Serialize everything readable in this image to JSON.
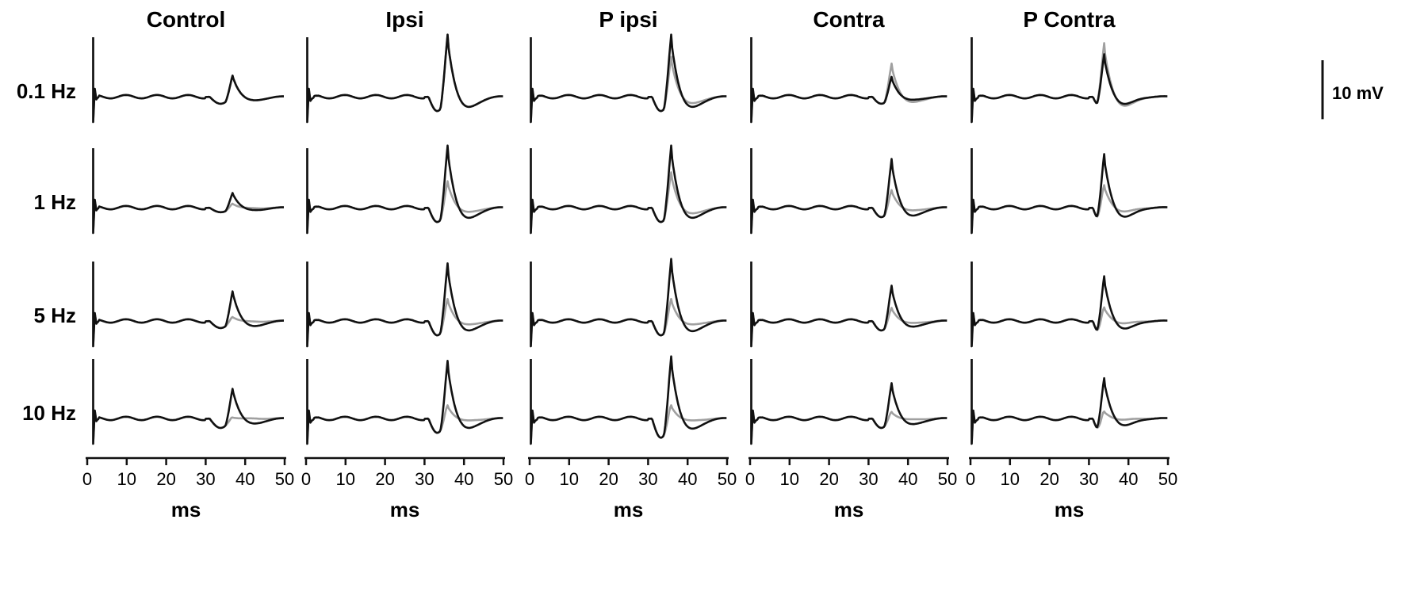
{
  "chart_data": {
    "type": "line",
    "columns": [
      "Control",
      "Ipsi",
      "P ipsi",
      "Contra",
      "P Contra"
    ],
    "rows": [
      "0.1 Hz",
      "1 Hz",
      "5 Hz",
      "10 Hz"
    ],
    "x_ticks": [
      "0",
      "10",
      "20",
      "30",
      "40",
      "50"
    ],
    "xlabel": "ms",
    "xlim": [
      0,
      50
    ],
    "scale_bar": {
      "label": "10 mV",
      "value_mV": 10
    },
    "series_colors": {
      "black": "#111111",
      "gray": "#a0a0a0"
    },
    "traces": {
      "Control": {
        "0.1 Hz": {
          "black_peak_mV": 5,
          "gray_peak_mV": 5,
          "peak_ms": 37,
          "dip_mV": -1.5
        },
        "1 Hz": {
          "black_peak_mV": 3.5,
          "gray_peak_mV": 1,
          "peak_ms": 37,
          "dip_mV": -1
        },
        "5 Hz": {
          "black_peak_mV": 7,
          "gray_peak_mV": 1,
          "peak_ms": 37,
          "dip_mV": -1.5
        },
        "10 Hz": {
          "black_peak_mV": 7,
          "gray_peak_mV": 0.3,
          "peak_ms": 37,
          "dip_mV": -2
        }
      },
      "Ipsi": {
        "0.1 Hz": {
          "black_peak_mV": 14,
          "gray_peak_mV": 14,
          "peak_ms": 36,
          "dip_mV": -3
        },
        "1 Hz": {
          "black_peak_mV": 14,
          "gray_peak_mV": 6,
          "peak_ms": 36,
          "dip_mV": -3
        },
        "5 Hz": {
          "black_peak_mV": 13,
          "gray_peak_mV": 5,
          "peak_ms": 36,
          "dip_mV": -3
        },
        "10 Hz": {
          "black_peak_mV": 13,
          "gray_peak_mV": 3,
          "peak_ms": 36,
          "dip_mV": -3
        }
      },
      "P ipsi": {
        "0.1 Hz": {
          "black_peak_mV": 14,
          "gray_peak_mV": 9,
          "peak_ms": 36,
          "dip_mV": -3
        },
        "1 Hz": {
          "black_peak_mV": 14,
          "gray_peak_mV": 8,
          "peak_ms": 36,
          "dip_mV": -3
        },
        "5 Hz": {
          "black_peak_mV": 14,
          "gray_peak_mV": 5,
          "peak_ms": 36,
          "dip_mV": -3
        },
        "10 Hz": {
          "black_peak_mV": 14,
          "gray_peak_mV": 3,
          "peak_ms": 36,
          "dip_mV": -4
        }
      },
      "Contra": {
        "0.1 Hz": {
          "black_peak_mV": 4.5,
          "gray_peak_mV": 7.5,
          "peak_ms": 36,
          "dip_mV": -1.5
        },
        "1 Hz": {
          "black_peak_mV": 11,
          "gray_peak_mV": 4,
          "peak_ms": 36,
          "dip_mV": -2
        },
        "5 Hz": {
          "black_peak_mV": 8,
          "gray_peak_mV": 3,
          "peak_ms": 36,
          "dip_mV": -2
        },
        "10 Hz": {
          "black_peak_mV": 8,
          "gray_peak_mV": 1.5,
          "peak_ms": 36,
          "dip_mV": -2
        }
      },
      "P Contra": {
        "0.1 Hz": {
          "black_peak_mV": 9.5,
          "gray_peak_mV": 12,
          "peak_ms": 34,
          "dip_mV": -1.5
        },
        "1 Hz": {
          "black_peak_mV": 12,
          "gray_peak_mV": 5,
          "peak_ms": 34,
          "dip_mV": -2
        },
        "5 Hz": {
          "black_peak_mV": 10,
          "gray_peak_mV": 3,
          "peak_ms": 34,
          "dip_mV": -2
        },
        "10 Hz": {
          "black_peak_mV": 9,
          "gray_peak_mV": 1.5,
          "peak_ms": 34,
          "dip_mV": -2
        }
      }
    }
  }
}
